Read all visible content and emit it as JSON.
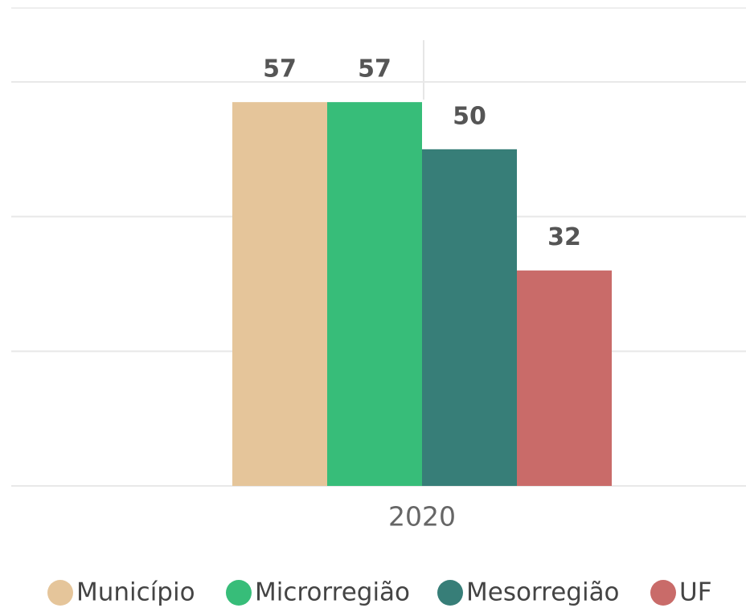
{
  "chart_data": {
    "type": "bar",
    "categories": [
      "2020"
    ],
    "series": [
      {
        "name": "Município",
        "color": "#e5c59a",
        "values": [
          57
        ]
      },
      {
        "name": "Microrregião",
        "color": "#37bd79",
        "values": [
          57
        ]
      },
      {
        "name": "Mesorregião",
        "color": "#377e78",
        "values": [
          50
        ]
      },
      {
        "name": "UF",
        "color": "#c96b69",
        "values": [
          32
        ]
      }
    ],
    "ylim": [
      0,
      60
    ],
    "yticks": [
      0,
      20,
      40,
      60
    ],
    "grid": true,
    "legend": "bottom"
  }
}
